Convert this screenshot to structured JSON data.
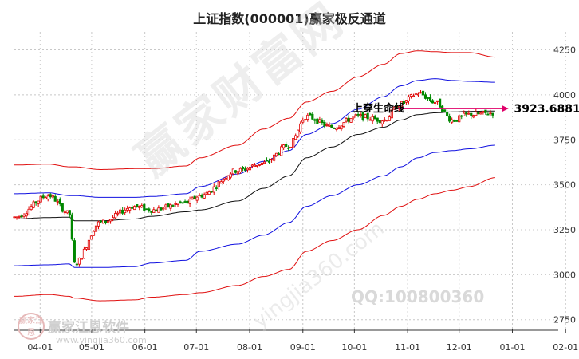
{
  "header": {
    "title": "上证指数(000001)赢家极反通道"
  },
  "watermark": {
    "brand": "赢家财富网",
    "url": "yingjia360.com",
    "qq": "QQ:100800360",
    "logo_text": "赢家江恩软件",
    "logo_url": "www.yingjia360.com",
    "logo_mark": "赢家江恩"
  },
  "annotation": {
    "label": "上穿生命线",
    "value_label": "3923.6881",
    "value": 3923.6881
  },
  "colors": {
    "up": "#e00000",
    "down": "#008800",
    "upper_band": "#e01010",
    "mid_band": "#1010e0",
    "life_line": "#111111",
    "grid": "#c8c8c8",
    "arrow": "#e0006a"
  },
  "chart_data": {
    "type": "line",
    "title": "上证指数(000001)赢家极反通道",
    "xlabel": "",
    "ylabel": "",
    "x_tick_labels": [
      "04-01",
      "05-01",
      "06-01",
      "07-01",
      "08-01",
      "09-01",
      "10-01",
      "11-01",
      "12-01",
      "01-01",
      "02-01"
    ],
    "x_tick_days": [
      15,
      45,
      76,
      106,
      137,
      168,
      198,
      229,
      259,
      290,
      321
    ],
    "xlim": [
      0,
      326
    ],
    "y_tick_labels": [
      "4250",
      "4000",
      "3750",
      "3500",
      "3250",
      "3000",
      "2750"
    ],
    "ylim": [
      2700,
      4350
    ],
    "grid": "both",
    "key_days": [
      0,
      20,
      32,
      35,
      50,
      70,
      80,
      100,
      108,
      130,
      145,
      160,
      170,
      185,
      200,
      215,
      225,
      235,
      245,
      255,
      265,
      280
    ],
    "series": [
      {
        "role": "upper_outer_band",
        "values": [
          3610,
          3615,
          3600,
          3600,
          3585,
          3590,
          3590,
          3605,
          3650,
          3720,
          3810,
          3870,
          3960,
          4020,
          4100,
          4170,
          4230,
          4245,
          4240,
          4235,
          4235,
          4210
        ]
      },
      {
        "role": "upper_inner_band",
        "values": [
          3450,
          3455,
          3440,
          3440,
          3430,
          3430,
          3435,
          3450,
          3490,
          3560,
          3630,
          3690,
          3780,
          3840,
          3920,
          3990,
          4050,
          4080,
          4090,
          4080,
          4075,
          4070
        ]
      },
      {
        "role": "life_line",
        "values": [
          3310,
          3318,
          3320,
          3300,
          3300,
          3310,
          3325,
          3350,
          3360,
          3410,
          3480,
          3550,
          3650,
          3710,
          3780,
          3820,
          3860,
          3890,
          3900,
          3905,
          3908,
          3910
        ]
      },
      {
        "role": "lower_inner_band",
        "values": [
          3050,
          3055,
          3060,
          3040,
          3040,
          3045,
          3065,
          3080,
          3130,
          3170,
          3220,
          3290,
          3380,
          3440,
          3500,
          3550,
          3600,
          3650,
          3680,
          3690,
          3700,
          3720
        ]
      },
      {
        "role": "lower_outer_band",
        "values": [
          2880,
          2890,
          2880,
          2870,
          2855,
          2860,
          2875,
          2890,
          2900,
          2940,
          2990,
          3030,
          3130,
          3190,
          3250,
          3330,
          3380,
          3420,
          3450,
          3470,
          3490,
          3540
        ]
      },
      {
        "role": "price",
        "values": [
          3320,
          3440,
          3340,
          3060,
          3290,
          3380,
          3360,
          3400,
          3440,
          3580,
          3620,
          3720,
          3880,
          3820,
          3880,
          3860,
          3950,
          4010,
          3960,
          3860,
          3890,
          3900
        ]
      }
    ]
  }
}
